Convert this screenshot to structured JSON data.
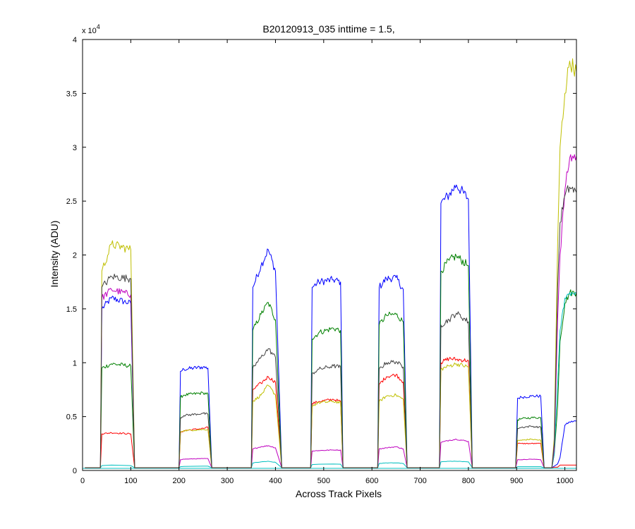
{
  "chart_data": {
    "type": "line",
    "title": "B20120913_035 inttime = 1.5,",
    "xlabel": "Across Track Pixels",
    "ylabel": "Intensity (ADU)",
    "xlim": [
      0,
      1024
    ],
    "ylim": [
      0,
      40000
    ],
    "x_ticks": [
      "0",
      "100",
      "200",
      "300",
      "400",
      "500",
      "600",
      "700",
      "800",
      "900",
      "1000"
    ],
    "x_tick_values": [
      0,
      100,
      200,
      300,
      400,
      500,
      600,
      700,
      800,
      900,
      1000
    ],
    "y_ticks": [
      "0",
      "0.5",
      "1",
      "1.5",
      "2",
      "2.5",
      "3",
      "3.5",
      "4"
    ],
    "y_tick_values": [
      0,
      5000,
      10000,
      15000,
      20000,
      25000,
      30000,
      35000,
      40000
    ],
    "y_multiplier_base": "x 10",
    "y_multiplier_exponent": "4",
    "grid": false,
    "legend": "none",
    "baseline": 200,
    "x": [
      5,
      37,
      40,
      60,
      100,
      108,
      200,
      203,
      210,
      250,
      260,
      268,
      350,
      353,
      370,
      385,
      400,
      413,
      473,
      476,
      490,
      520,
      535,
      540,
      612,
      615,
      630,
      650,
      665,
      673,
      740,
      743,
      760,
      775,
      800,
      808,
      898,
      902,
      910,
      930,
      950,
      957,
      973,
      978,
      985,
      990,
      1000,
      1010,
      1024
    ],
    "series": [
      {
        "name": "",
        "color": "#0000ff",
        "values": [
          250,
          250,
          15000,
          16000,
          15500,
          250,
          250,
          9200,
          9400,
          9600,
          9500,
          250,
          250,
          17000,
          19000,
          20500,
          18500,
          250,
          250,
          17000,
          17500,
          17700,
          17500,
          250,
          250,
          17000,
          17800,
          17900,
          16800,
          250,
          250,
          24800,
          25600,
          26500,
          25200,
          250,
          250,
          6700,
          6800,
          6900,
          6900,
          250,
          250,
          400,
          600,
          1200,
          4200,
          4500,
          4600
        ]
      },
      {
        "name": "",
        "color": "#008000",
        "values": [
          250,
          250,
          9500,
          9900,
          9700,
          250,
          250,
          6800,
          7000,
          7200,
          7100,
          250,
          250,
          13000,
          14500,
          15600,
          14000,
          250,
          250,
          12200,
          12800,
          13200,
          13000,
          250,
          250,
          13500,
          14400,
          14500,
          13800,
          250,
          250,
          18500,
          19500,
          19900,
          19000,
          250,
          250,
          4700,
          4800,
          4900,
          4900,
          250,
          250,
          1500,
          6000,
          12000,
          15500,
          16500,
          16500
        ]
      },
      {
        "name": "",
        "color": "#ff0000",
        "values": [
          250,
          250,
          3400,
          3500,
          3400,
          250,
          250,
          3500,
          3700,
          3900,
          4000,
          250,
          250,
          7500,
          8100,
          8700,
          8200,
          250,
          250,
          6200,
          6400,
          6600,
          6400,
          250,
          250,
          8000,
          8700,
          8900,
          8200,
          250,
          250,
          10000,
          10400,
          10300,
          10200,
          250,
          250,
          2500,
          2500,
          2500,
          2500,
          250,
          250,
          300,
          300,
          500,
          500,
          500,
          500
        ]
      },
      {
        "name": "",
        "color": "#00bfbf",
        "values": [
          250,
          250,
          450,
          500,
          450,
          250,
          250,
          350,
          380,
          400,
          400,
          250,
          250,
          700,
          800,
          850,
          750,
          250,
          250,
          550,
          580,
          600,
          580,
          250,
          250,
          650,
          700,
          700,
          650,
          250,
          250,
          800,
          850,
          850,
          800,
          250,
          250,
          350,
          350,
          350,
          350,
          250,
          250,
          1500,
          8000,
          13000,
          16000,
          16500,
          16500
        ]
      },
      {
        "name": "",
        "color": "#bf00bf",
        "values": [
          250,
          250,
          16000,
          16800,
          16300,
          250,
          250,
          1000,
          1050,
          1100,
          1100,
          250,
          250,
          2000,
          2200,
          2300,
          2100,
          250,
          250,
          1800,
          1850,
          1900,
          1900,
          250,
          250,
          2000,
          2100,
          2200,
          2000,
          250,
          250,
          2600,
          2800,
          2900,
          2700,
          250,
          250,
          1000,
          1000,
          1050,
          1000,
          250,
          250,
          2000,
          14000,
          20000,
          26000,
          29000,
          29200
        ]
      },
      {
        "name": "",
        "color": "#bfbf00",
        "values": [
          250,
          250,
          18500,
          21000,
          20500,
          250,
          250,
          3600,
          3700,
          3800,
          3800,
          250,
          250,
          6400,
          7000,
          7900,
          7000,
          250,
          250,
          6000,
          6300,
          6400,
          6300,
          250,
          250,
          6400,
          6900,
          7000,
          6600,
          250,
          250,
          9400,
          9700,
          9900,
          9600,
          250,
          250,
          2800,
          2800,
          2900,
          2800,
          250,
          250,
          3000,
          21000,
          30000,
          35000,
          38000,
          37000
        ]
      },
      {
        "name": "",
        "color": "#404040",
        "values": [
          250,
          250,
          17000,
          18000,
          17800,
          250,
          250,
          4900,
          5100,
          5300,
          5200,
          250,
          250,
          9500,
          10500,
          11300,
          10500,
          250,
          250,
          9000,
          9400,
          9700,
          9600,
          250,
          250,
          9400,
          10000,
          10100,
          9600,
          250,
          250,
          13500,
          14000,
          14600,
          13800,
          250,
          250,
          3900,
          4000,
          4100,
          4000,
          250,
          250,
          2500,
          17000,
          23000,
          25500,
          26300,
          25800
        ]
      }
    ]
  }
}
